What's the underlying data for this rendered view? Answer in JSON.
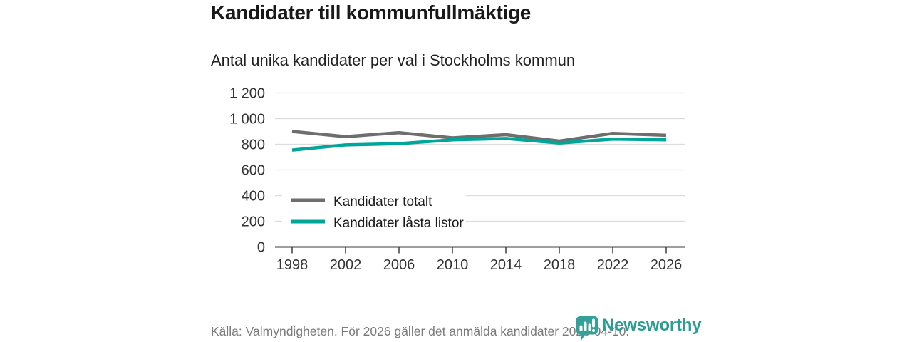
{
  "chart_data": {
    "type": "line",
    "title": "Kandidater till kommunfullmäktige",
    "subtitle": "Antal unika kandidater per val i Stockholms kommun",
    "x": [
      "1998",
      "2002",
      "2006",
      "2010",
      "2014",
      "2018",
      "2022",
      "2026"
    ],
    "series": [
      {
        "name": "Kandidater totalt",
        "color": "#6e6e6e",
        "values": [
          900,
          860,
          890,
          850,
          875,
          825,
          885,
          870
        ]
      },
      {
        "name": "Kandidater låsta listor",
        "color": "#00a69a",
        "values": [
          755,
          795,
          805,
          835,
          845,
          810,
          840,
          835
        ]
      }
    ],
    "xlabel": "",
    "ylabel": "",
    "ylim": [
      0,
      1200
    ],
    "ytick_step": 200,
    "ytick_labels": [
      "0",
      "200",
      "400",
      "600",
      "800",
      "1 000",
      "1 200"
    ],
    "grid": "horizontal",
    "legend_position": "inside-bottom-left"
  },
  "footer": {
    "source": "Källa: Valmyndigheten. För 2026 gäller det anmälda kandidater 2026-04-10.",
    "brand": "Newsworthy",
    "brand_color": "#2a9d95"
  }
}
